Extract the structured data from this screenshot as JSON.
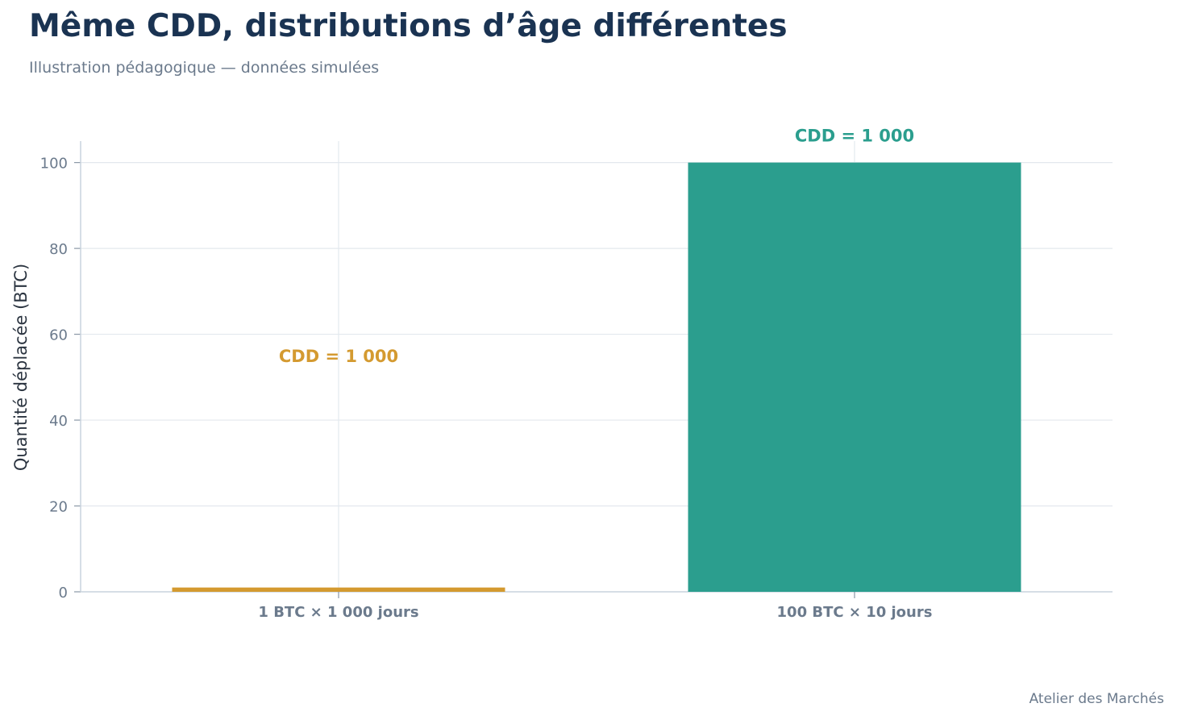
{
  "header": {
    "title": "Même CDD, distributions d’âge différentes",
    "subtitle": "Illustration pédagogique — données simulées"
  },
  "footer": {
    "source": "Atelier des Marchés"
  },
  "chart_data": {
    "type": "bar",
    "categories": [
      "1 BTC × 1 000 jours",
      "100 BTC × 10 jours"
    ],
    "values": [
      1,
      100
    ],
    "colors": [
      "#d49a30",
      "#2b9e8e"
    ],
    "annotations": [
      "CDD = 1 000",
      "CDD = 1 000"
    ],
    "xlabel": "",
    "ylabel": "Quantité déplacée (BTC)",
    "ylim": [
      0,
      105
    ],
    "yticks": [
      0,
      20,
      40,
      60,
      80,
      100
    ],
    "grid": true
  }
}
